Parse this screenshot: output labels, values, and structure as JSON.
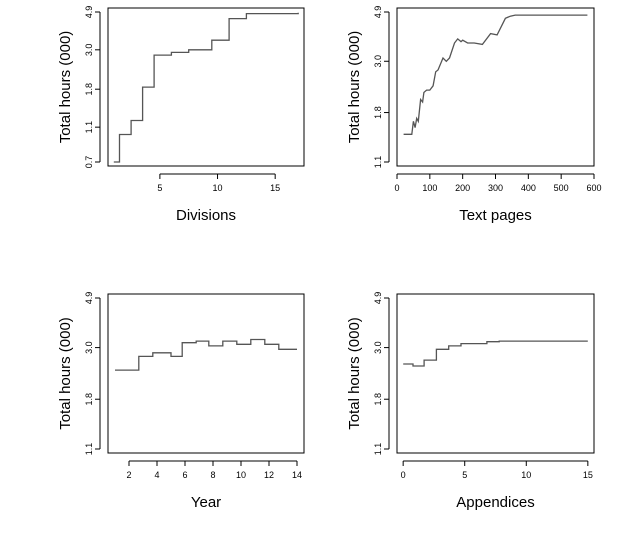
{
  "chart_data": [
    {
      "type": "line",
      "xlabel": "Divisions",
      "ylabel": "Total hours (000)",
      "x_ticks": [
        5,
        10,
        15
      ],
      "y_ticks": [
        "0.7",
        "1.1",
        "1.8",
        "3.0",
        "4.9"
      ],
      "xlim": [
        0.5,
        17.5
      ],
      "y_scale": "log",
      "ylim": [
        0.7,
        4.9
      ],
      "series": [
        {
          "step": true,
          "x": [
            1,
            1.5,
            2.5,
            3.5,
            4.5,
            6,
            7.5,
            9.5,
            11,
            12.5,
            17
          ],
          "y": [
            0.7,
            1.0,
            1.2,
            1.85,
            2.8,
            2.9,
            3.0,
            3.4,
            4.5,
            4.8,
            4.85
          ]
        }
      ]
    },
    {
      "type": "line",
      "xlabel": "Text pages",
      "ylabel": "Total hours (000)",
      "x_ticks": [
        0,
        100,
        200,
        300,
        400,
        500,
        600
      ],
      "y_ticks": [
        "1.1",
        "1.8",
        "3.0",
        "4.9"
      ],
      "xlim": [
        0,
        600
      ],
      "y_scale": "log",
      "ylim": [
        1.1,
        4.9
      ],
      "series": [
        {
          "step": false,
          "x": [
            20,
            45,
            50,
            55,
            60,
            65,
            72,
            78,
            82,
            90,
            100,
            110,
            118,
            125,
            140,
            150,
            160,
            175,
            185,
            195,
            200,
            215,
            235,
            260,
            285,
            305,
            330,
            345,
            360,
            380,
            420,
            480,
            580
          ],
          "y": [
            1.45,
            1.45,
            1.65,
            1.55,
            1.7,
            1.65,
            2.05,
            2.0,
            2.2,
            2.25,
            2.25,
            2.35,
            2.7,
            2.75,
            3.1,
            3.0,
            3.1,
            3.6,
            3.75,
            3.65,
            3.7,
            3.6,
            3.6,
            3.55,
            3.95,
            3.9,
            4.6,
            4.7,
            4.75,
            4.75,
            4.75,
            4.75,
            4.75
          ]
        }
      ]
    },
    {
      "type": "line",
      "xlabel": "Year",
      "ylabel": "Total hours (000)",
      "x_ticks": [
        2,
        4,
        6,
        8,
        10,
        12,
        14
      ],
      "y_ticks": [
        "1.1",
        "1.8",
        "3.0",
        "4.9"
      ],
      "xlim": [
        0.5,
        14.5
      ],
      "y_scale": "log",
      "ylim": [
        1.1,
        4.9
      ],
      "series": [
        {
          "step": true,
          "x": [
            1,
            2.7,
            3.7,
            5,
            5.8,
            6.8,
            7.7,
            8.7,
            9.7,
            10.7,
            11.7,
            12.7,
            14
          ],
          "y": [
            2.4,
            2.75,
            2.85,
            2.75,
            3.15,
            3.2,
            3.05,
            3.2,
            3.1,
            3.25,
            3.1,
            2.95,
            2.95
          ]
        }
      ]
    },
    {
      "type": "line",
      "xlabel": "Appendices",
      "ylabel": "Total hours (000)",
      "x_ticks": [
        0,
        5,
        10,
        15
      ],
      "y_ticks": [
        "1.1",
        "1.8",
        "3.0",
        "4.9"
      ],
      "xlim": [
        -0.5,
        15.5
      ],
      "y_scale": "log",
      "ylim": [
        1.1,
        4.9
      ],
      "series": [
        {
          "step": true,
          "x": [
            0,
            0.8,
            1.7,
            2.7,
            3.7,
            4.7,
            6.8,
            7.8,
            15
          ],
          "y": [
            2.55,
            2.5,
            2.65,
            2.95,
            3.05,
            3.12,
            3.18,
            3.2,
            3.2
          ]
        }
      ]
    }
  ]
}
